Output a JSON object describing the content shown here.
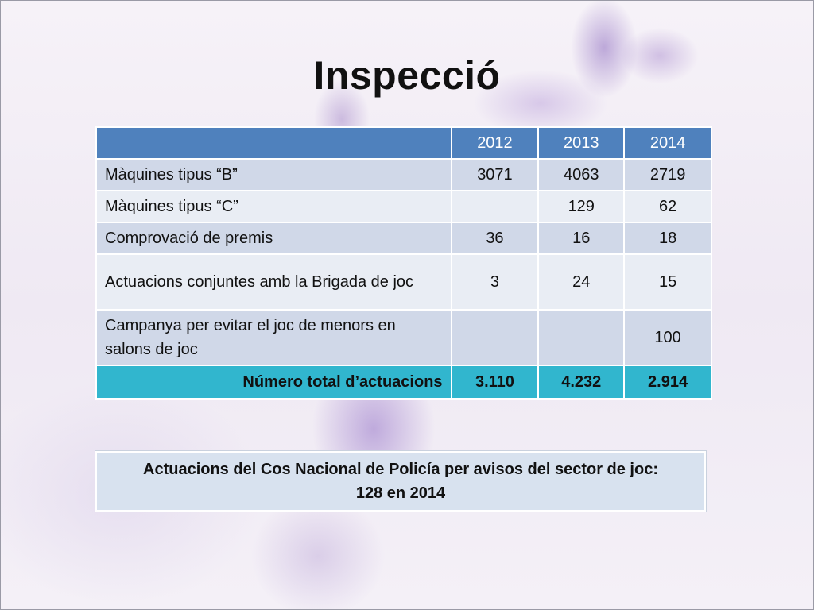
{
  "slide": {
    "title": "Inspecció"
  },
  "table": {
    "header": [
      "",
      "2012",
      "2013",
      "2014"
    ],
    "rows": [
      {
        "label": "Màquines tipus “B”",
        "v2012": "3071",
        "v2013": "4063",
        "v2014": "2719"
      },
      {
        "label": "Màquines tipus “C”",
        "v2012": "",
        "v2013": "129",
        "v2014": "62"
      },
      {
        "label": "Comprovació de premis",
        "v2012": "36",
        "v2013": "16",
        "v2014": "18"
      },
      {
        "label": "Actuacions conjuntes amb la Brigada de joc",
        "v2012": "3",
        "v2013": "24",
        "v2014": "15"
      },
      {
        "label": "Campanya per evitar el joc de menors en salons de joc",
        "v2012": "",
        "v2013": "",
        "v2014": "100"
      }
    ],
    "total": {
      "label": "Número total d’actuacions",
      "v2012": "3.110",
      "v2013": "4.232",
      "v2014": "2.914"
    }
  },
  "note": {
    "line1": "Actuacions del Cos Nacional de Policía per avisos del sector de joc:",
    "line2": "128 en 2014"
  },
  "colors": {
    "header_blue": "#4f81bd",
    "row_odd": "#d0d8e8",
    "row_even": "#e9edf4",
    "total_teal": "#31b6ce",
    "note_bg": "#d8e2ef"
  }
}
